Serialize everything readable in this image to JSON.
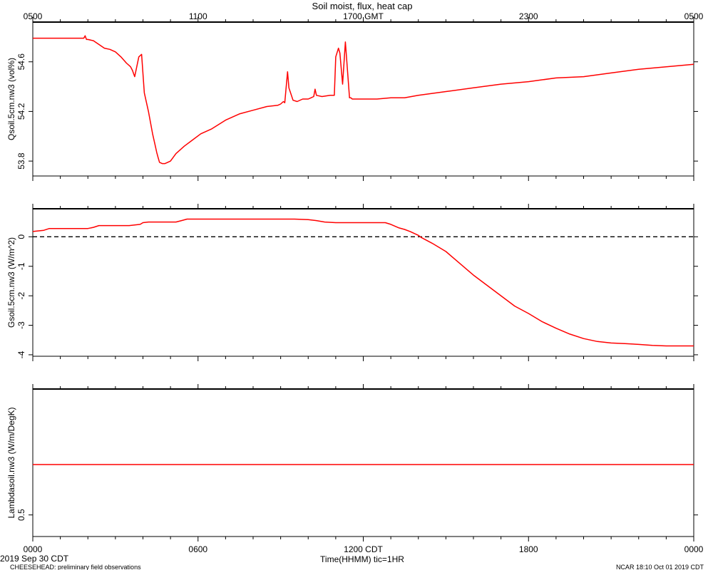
{
  "figure": {
    "title": "Soil moist, flux, heat cap",
    "x_label": "Time(HHMM)  tic=1HR",
    "date_label": "2019 Sep 30 CDT",
    "footer_left": "CHEESEHEAD: preliminary field observations",
    "footer_right": "NCAR 18:10 Oct 01 2019 CDT",
    "line_color": "#ff0000",
    "frame_color": "#000000"
  },
  "chart_data": [
    {
      "type": "line",
      "ylabel": "Qsoil.5cm.nw3 (vol%)",
      "x_unit": "hours since 0000 CDT",
      "xlim": [
        0,
        24
      ],
      "ylim": [
        53.68,
        54.92
      ],
      "yticks": [
        53.8,
        54.2,
        54.6
      ],
      "ytick_labels": [
        "53.8",
        "54.2",
        "54.6"
      ],
      "top_axis": {
        "ticks": [
          0,
          6,
          12,
          18,
          24
        ],
        "labels": [
          "0500",
          "1100",
          "1700 GMT",
          "2300",
          "0500"
        ]
      },
      "series": [
        {
          "color": "#ff0000",
          "x": [
            0,
            0.5,
            1.0,
            1.5,
            1.85,
            1.9,
            1.95,
            2.0,
            2.2,
            2.4,
            2.6,
            2.8,
            3.0,
            3.2,
            3.4,
            3.55,
            3.62,
            3.7,
            3.85,
            3.95,
            4.05,
            4.2,
            4.35,
            4.45,
            4.5,
            4.55,
            4.6,
            4.7,
            4.8,
            4.9,
            5.0,
            5.2,
            5.5,
            5.8,
            6.1,
            6.5,
            7.0,
            7.5,
            8.0,
            8.5,
            8.9,
            9.0,
            9.1,
            9.15,
            9.25,
            9.3,
            9.45,
            9.6,
            9.8,
            10.0,
            10.1,
            10.2,
            10.25,
            10.3,
            10.5,
            10.8,
            10.95,
            11.0,
            11.1,
            11.15,
            11.25,
            11.35,
            11.5,
            11.55,
            11.6,
            11.7,
            12.0,
            12.5,
            13.0,
            13.5,
            14.0,
            15.0,
            16.0,
            17.0,
            18.0,
            19.0,
            20.0,
            21.0,
            22.0,
            22.5,
            23.0,
            23.5,
            24.0
          ],
          "y": [
            54.79,
            54.79,
            54.79,
            54.79,
            54.79,
            54.81,
            54.78,
            54.78,
            54.77,
            54.74,
            54.71,
            54.7,
            54.68,
            54.64,
            54.59,
            54.56,
            54.53,
            54.48,
            54.64,
            54.66,
            54.35,
            54.2,
            54.02,
            53.92,
            53.87,
            53.83,
            53.79,
            53.78,
            53.78,
            53.79,
            53.8,
            53.86,
            53.92,
            53.97,
            54.02,
            54.06,
            54.13,
            54.18,
            54.21,
            54.24,
            54.25,
            54.26,
            54.28,
            54.27,
            54.52,
            54.39,
            54.29,
            54.28,
            54.3,
            54.3,
            54.31,
            54.32,
            54.38,
            54.33,
            54.32,
            54.33,
            54.33,
            54.64,
            54.71,
            54.67,
            54.42,
            54.76,
            54.31,
            54.31,
            54.3,
            54.3,
            54.3,
            54.3,
            54.31,
            54.31,
            54.33,
            54.36,
            54.39,
            54.42,
            54.44,
            54.47,
            54.48,
            54.51,
            54.54,
            54.55,
            54.56,
            54.57,
            54.58
          ]
        }
      ]
    },
    {
      "type": "line",
      "ylabel": "Gsoil.5cm.nw3 (W/m^2)",
      "x_unit": "hours since 0000 CDT",
      "xlim": [
        0,
        24
      ],
      "ylim": [
        -4.05,
        0.95
      ],
      "yticks": [
        0,
        -1,
        -2,
        -3,
        -4
      ],
      "ytick_labels": [
        "0",
        "-1",
        "-2",
        "-3",
        "-4"
      ],
      "reference_line": {
        "y": 0,
        "style": "dashed",
        "color": "#000000"
      },
      "series": [
        {
          "color": "#ff0000",
          "x": [
            0,
            0.4,
            0.6,
            1.0,
            1.5,
            2.0,
            2.2,
            2.4,
            2.6,
            3.5,
            3.9,
            4.0,
            4.2,
            4.4,
            5.2,
            5.4,
            5.6,
            8.0,
            9.5,
            10.0,
            10.3,
            10.6,
            11.0,
            12.0,
            12.8,
            13.0,
            13.3,
            13.5,
            13.7,
            14.0,
            14.1,
            14.5,
            15.0,
            15.5,
            16.0,
            16.5,
            17.0,
            17.5,
            18.0,
            18.5,
            19.0,
            19.5,
            20.0,
            20.5,
            21.0,
            21.5,
            22.0,
            22.5,
            23.0,
            24.0
          ],
          "y": [
            0.18,
            0.22,
            0.28,
            0.28,
            0.28,
            0.28,
            0.32,
            0.38,
            0.38,
            0.38,
            0.42,
            0.48,
            0.5,
            0.5,
            0.5,
            0.55,
            0.6,
            0.6,
            0.6,
            0.58,
            0.55,
            0.5,
            0.48,
            0.48,
            0.48,
            0.42,
            0.3,
            0.25,
            0.18,
            0.05,
            -0.02,
            -0.22,
            -0.5,
            -0.9,
            -1.3,
            -1.65,
            -2.0,
            -2.35,
            -2.6,
            -2.88,
            -3.1,
            -3.3,
            -3.45,
            -3.55,
            -3.6,
            -3.62,
            -3.65,
            -3.68,
            -3.7,
            -3.7
          ]
        }
      ]
    },
    {
      "type": "line",
      "ylabel": "Lambdasoil.nw3 (W/m/DegK)",
      "x_unit": "hours since 0000 CDT",
      "xlim": [
        0,
        24
      ],
      "ylim": [
        0.38,
        1.2
      ],
      "yticks": [
        0.5
      ],
      "ytick_labels": [
        "0.5"
      ],
      "bottom_axis": {
        "ticks": [
          0,
          6,
          12,
          18,
          24
        ],
        "labels": [
          "0000",
          "0600",
          "1200 CDT",
          "1800",
          "0000"
        ]
      },
      "series": [
        {
          "color": "#ff0000",
          "x": [
            0,
            24
          ],
          "y": [
            0.78,
            0.78
          ]
        }
      ]
    }
  ]
}
